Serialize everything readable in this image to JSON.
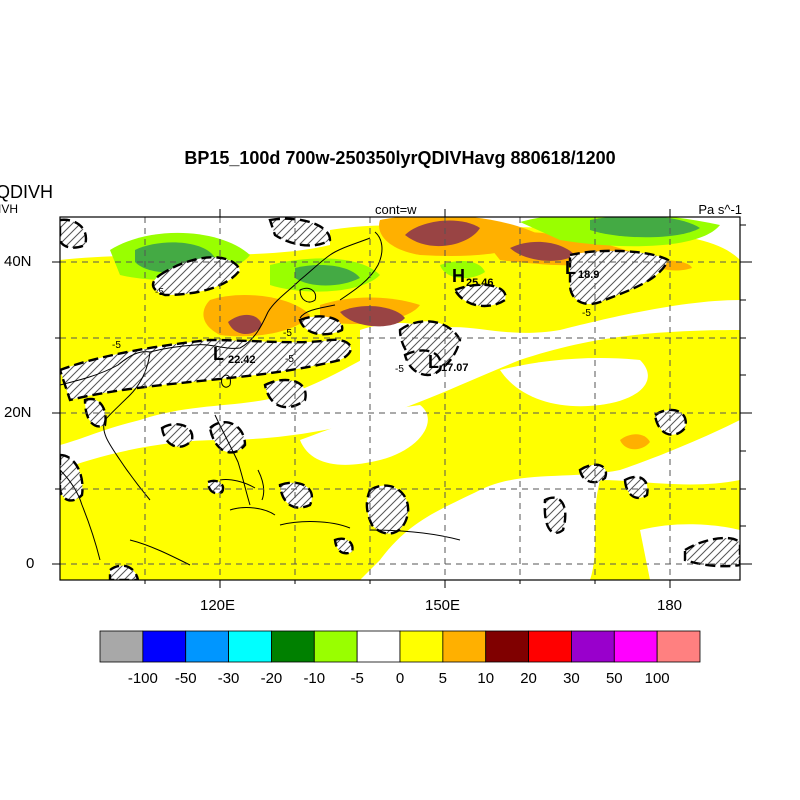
{
  "title": "BP15_100d 700w-250350lyrQDIVHavg  880618/1200",
  "left_title": "QDIVH",
  "left_subtitle": "IVH",
  "center_subtitle": "cont=w",
  "right_subtitle": "Pa s^-1",
  "y_axis": {
    "labels": [
      "40N",
      "20N",
      "0"
    ]
  },
  "x_axis": {
    "labels": [
      "120E",
      "150E",
      "180"
    ]
  },
  "contour_labels": [
    "-5",
    "-5",
    "-5",
    "-5",
    "-5",
    "-5"
  ],
  "extrema": [
    {
      "type": "L",
      "value": "22.42"
    },
    {
      "type": "H",
      "value": "25.46"
    },
    {
      "type": "L",
      "value": "17.07"
    },
    {
      "type": "L",
      "value": "18.9"
    }
  ],
  "colorbar": {
    "colors": [
      "#a8a8a8",
      "#0000ff",
      "#0096ff",
      "#00ffff",
      "#008000",
      "#99ff00",
      "#ffffff",
      "#ffff00",
      "#ffb000",
      "#800000",
      "#ff0000",
      "#9900cc",
      "#ff00ff",
      "#ff8080"
    ],
    "labels": [
      "-100",
      "-50",
      "-30",
      "-20",
      "-10",
      "-5",
      "0",
      "5",
      "10",
      "20",
      "30",
      "50",
      "100"
    ]
  }
}
